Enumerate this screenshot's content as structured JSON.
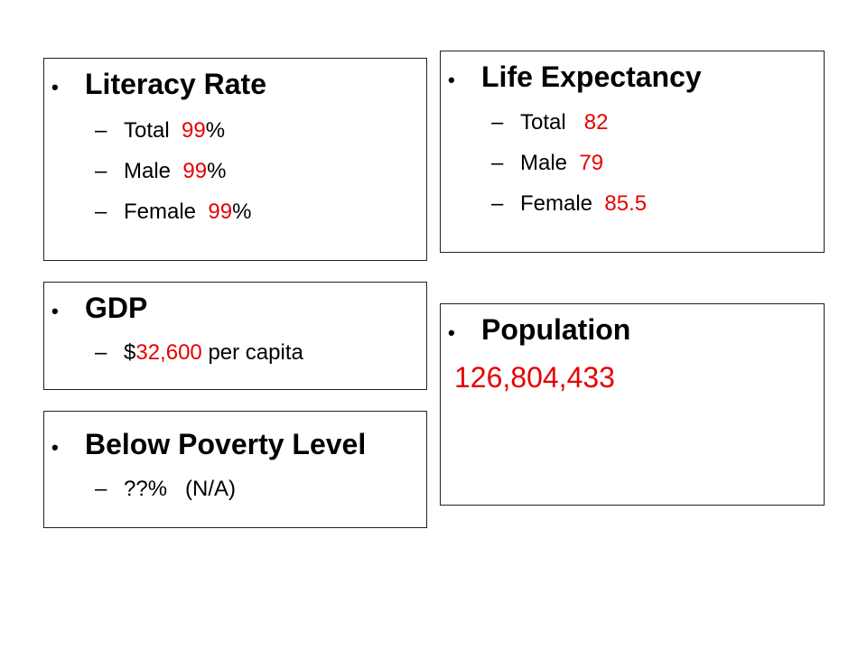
{
  "accent_color": "#e60000",
  "bullet_char": "•",
  "dash_char": "–",
  "literacy": {
    "title": "Literacy Rate",
    "items": [
      {
        "label": "Total",
        "value": "99",
        "suffix": "%"
      },
      {
        "label": "Male",
        "value": "99",
        "suffix": "%"
      },
      {
        "label": "Female",
        "value": "99",
        "suffix": "%"
      }
    ]
  },
  "life_expectancy": {
    "title": "Life Expectancy",
    "items": [
      {
        "label": "Total",
        "value": "82"
      },
      {
        "label": "Male",
        "value": "79"
      },
      {
        "label": "Female",
        "value": "85.5"
      }
    ]
  },
  "gdp": {
    "title": "GDP",
    "prefix": "$",
    "value": "32,600",
    "suffix": "per capita"
  },
  "population": {
    "title": "Population",
    "value": "126,804,433"
  },
  "poverty": {
    "title": "Below Poverty Level",
    "value": "??%   (N/A)"
  }
}
